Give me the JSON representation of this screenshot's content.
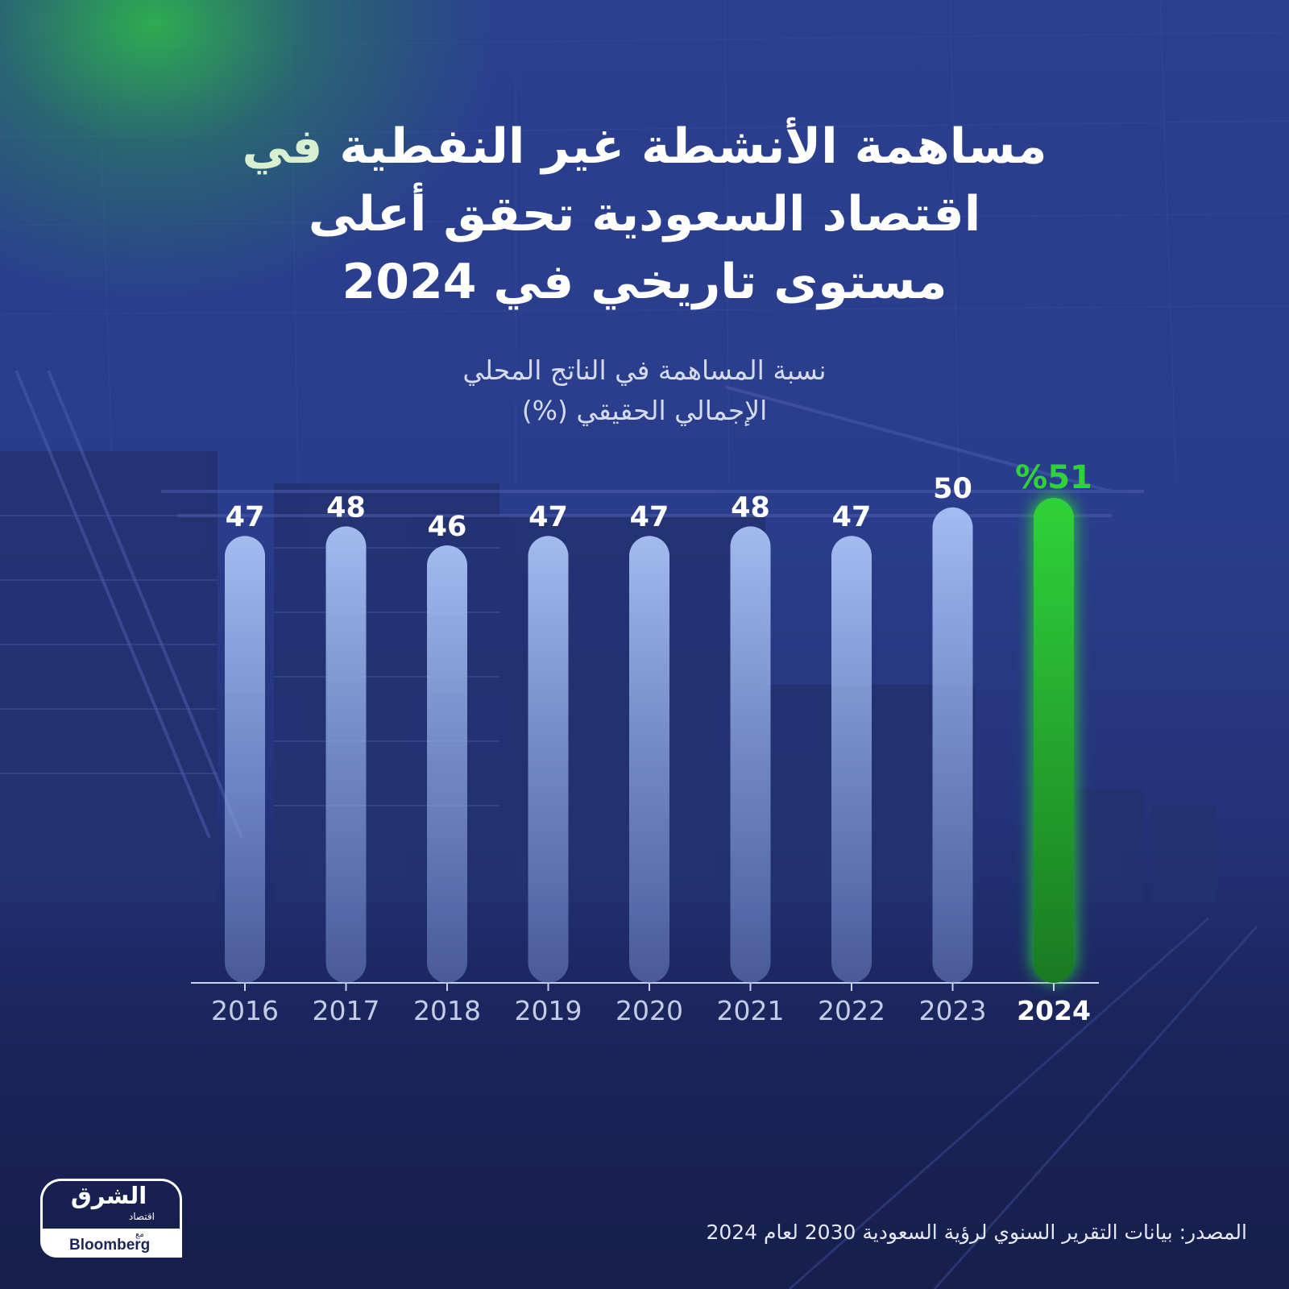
{
  "title": {
    "line1_a": "مساهمة الأنشطة غير النفطية",
    "line1_b": "في",
    "line2": "اقتصاد السعودية تحقق أعلى",
    "line3": "مستوى تاريخي في 2024"
  },
  "subtitle": {
    "line1": "نسبة المساهمة في الناتج المحلي",
    "line2": "الإجمالي الحقيقي (%)"
  },
  "source": "المصدر: بيانات التقرير السنوي لرؤية السعودية 2030 لعام 2024",
  "logo": {
    "arabic": "الشرق",
    "sub": "اقتصاد",
    "with": "مع",
    "brand": "Bloomberg"
  },
  "colors": {
    "background": "#2a3d8c",
    "bar": "#a9c2f5",
    "highlight": "#2fd23a",
    "title_highlight": "#d8f0d0"
  },
  "chart_data": {
    "type": "bar",
    "title": "مساهمة الأنشطة غير النفطية في اقتصاد السعودية تحقق أعلى مستوى تاريخي في 2024",
    "ylabel": "نسبة المساهمة في الناتج المحلي الإجمالي الحقيقي (%)",
    "xlabel": "",
    "categories": [
      "2016",
      "2017",
      "2018",
      "2019",
      "2020",
      "2021",
      "2022",
      "2023",
      "2024"
    ],
    "values": [
      47,
      48,
      46,
      47,
      47,
      48,
      47,
      50,
      51
    ],
    "value_labels": [
      "47",
      "48",
      "46",
      "47",
      "47",
      "48",
      "47",
      "50",
      "%51"
    ],
    "highlight_category": "2024",
    "ylim": [
      0,
      51
    ],
    "grid": false,
    "legend": "none"
  }
}
